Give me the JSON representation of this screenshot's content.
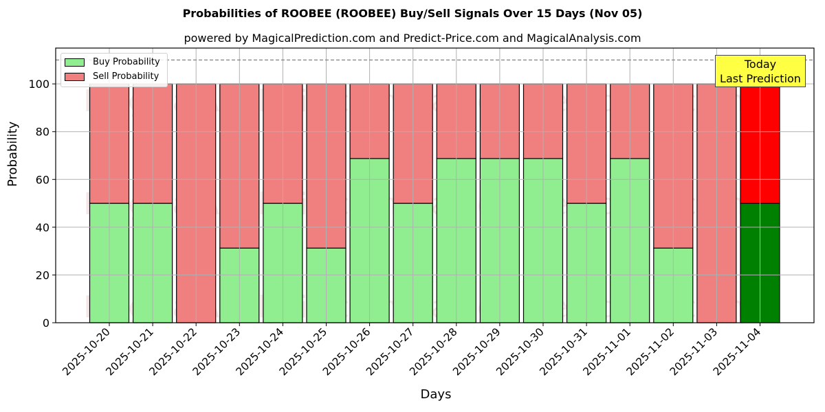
{
  "chart_data": {
    "type": "bar",
    "stacked": true,
    "title": "Probabilities of ROOBEE (ROOBEE) Buy/Sell Signals Over 15 Days (Nov 05)",
    "subtitle": "powered by MagicalPrediction.com and Predict-Price.com and MagicalAnalysis.com",
    "xlabel": "Days",
    "ylabel": "Probability",
    "ylim": [
      0,
      115
    ],
    "yticks": [
      0,
      20,
      40,
      60,
      80,
      100
    ],
    "grid": true,
    "reference_line": {
      "y": 110,
      "style": "dashed",
      "color": "#808080"
    },
    "legend_position": "upper left",
    "categories": [
      "2025-10-20",
      "2025-10-21",
      "2025-10-22",
      "2025-10-23",
      "2025-10-24",
      "2025-10-25",
      "2025-10-26",
      "2025-10-27",
      "2025-10-28",
      "2025-10-29",
      "2025-10-30",
      "2025-10-31",
      "2025-11-01",
      "2025-11-02",
      "2025-11-03",
      "2025-11-04"
    ],
    "series": [
      {
        "name": "Buy Probability",
        "color": "#90ee90",
        "values": [
          50,
          50,
          0,
          31.25,
          50,
          31.25,
          68.75,
          50,
          68.75,
          68.75,
          68.75,
          50,
          68.75,
          31.25,
          0,
          50
        ]
      },
      {
        "name": "Sell Probability",
        "color": "#f08080",
        "values": [
          50,
          50,
          100,
          68.75,
          50,
          68.75,
          31.25,
          50,
          31.25,
          31.25,
          31.25,
          50,
          31.25,
          68.75,
          100,
          50
        ]
      }
    ],
    "highlight": {
      "index": 15,
      "buy_color": "#008000",
      "sell_color": "#ff0000",
      "annotation": "Today\nLast Prediction"
    },
    "watermarks": [
      "MagicalAnalysis.com",
      "MagicalPrediction.com"
    ]
  },
  "labels": {
    "title": "Probabilities of ROOBEE (ROOBEE) Buy/Sell Signals Over 15 Days (Nov 05)",
    "subtitle": "powered by MagicalPrediction.com and Predict-Price.com and MagicalAnalysis.com",
    "xlabel": "Days",
    "ylabel": "Probability",
    "legend_buy": "Buy Probability",
    "legend_sell": "Sell Probability",
    "today_line1": "Today",
    "today_line2": "Last Prediction"
  }
}
